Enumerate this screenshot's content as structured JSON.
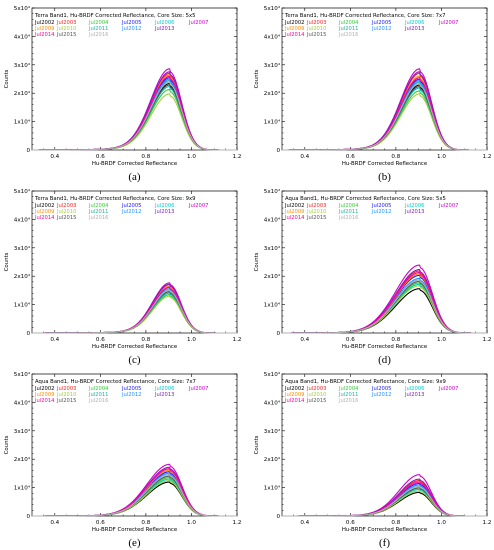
{
  "chart_data": [
    {
      "type": "line",
      "title": "Terra Band1, Hu-BRDF Corrected Reflectance, Core Size: 5x5",
      "xlabel": "Hu-BRDF Corrected Reflectance",
      "ylabel": "Counts",
      "xlim": [
        0.3,
        1.2
      ],
      "ylim": [
        0,
        50000
      ],
      "panel_label": "(a)",
      "peak_x": 0.905,
      "width_left": 0.083,
      "width_right": 0.052,
      "series": [
        {
          "name": "Jul2002",
          "color": "#000000",
          "peak": 22500
        },
        {
          "name": "Jul2003",
          "color": "#ff2020",
          "peak": 26000
        },
        {
          "name": "Jul2004",
          "color": "#33cc33",
          "peak": 20500
        },
        {
          "name": "Jul2005",
          "color": "#1a1aff",
          "peak": 24500
        },
        {
          "name": "Jul2006",
          "color": "#00cccc",
          "peak": 21500
        },
        {
          "name": "Jul2007",
          "color": "#cc00cc",
          "peak": 27500
        },
        {
          "name": "Jul2009",
          "color": "#ff8c00",
          "peak": 25500
        },
        {
          "name": "Jul2010",
          "color": "#a0d040",
          "peak": 19000
        },
        {
          "name": "Jul2011",
          "color": "#20b0a0",
          "peak": 23500
        },
        {
          "name": "Jul2012",
          "color": "#2090ff",
          "peak": 24000
        },
        {
          "name": "Jul2013",
          "color": "#8020c0",
          "peak": 26500
        },
        {
          "name": "Jul2014",
          "color": "#ff00a0",
          "peak": 25000
        },
        {
          "name": "Jul2015",
          "color": "#555555",
          "peak": 22000
        },
        {
          "name": "Jul2016",
          "color": "#b0b0b0",
          "peak": 23000
        }
      ]
    },
    {
      "type": "line",
      "title": "Terra Band1, Hu-BRDF Corrected Reflectance, Core Size: 7x7",
      "xlabel": "Hu-BRDF Corrected Reflectance",
      "ylabel": "Counts",
      "xlim": [
        0.3,
        1.2
      ],
      "ylim": [
        0,
        50000
      ],
      "panel_label": "(b)",
      "peak_x": 0.905,
      "width_left": 0.083,
      "width_right": 0.052,
      "series": [
        {
          "name": "Jul2002",
          "color": "#000000",
          "peak": 22000
        },
        {
          "name": "Jul2003",
          "color": "#ff2020",
          "peak": 26000
        },
        {
          "name": "Jul2004",
          "color": "#33cc33",
          "peak": 20000
        },
        {
          "name": "Jul2005",
          "color": "#1a1aff",
          "peak": 24000
        },
        {
          "name": "Jul2006",
          "color": "#00cccc",
          "peak": 21000
        },
        {
          "name": "Jul2007",
          "color": "#cc00cc",
          "peak": 27500
        },
        {
          "name": "Jul2009",
          "color": "#ff8c00",
          "peak": 25000
        },
        {
          "name": "Jul2010",
          "color": "#a0d040",
          "peak": 19000
        },
        {
          "name": "Jul2011",
          "color": "#20b0a0",
          "peak": 23000
        },
        {
          "name": "Jul2012",
          "color": "#2090ff",
          "peak": 23500
        },
        {
          "name": "Jul2013",
          "color": "#8020c0",
          "peak": 26500
        },
        {
          "name": "Jul2014",
          "color": "#ff00a0",
          "peak": 24500
        },
        {
          "name": "Jul2015",
          "color": "#555555",
          "peak": 21500
        },
        {
          "name": "Jul2016",
          "color": "#b0b0b0",
          "peak": 22500
        }
      ]
    },
    {
      "type": "line",
      "title": "Terra Band1, Hu-BRDF Corrected Reflectance, Core Size: 9x9",
      "xlabel": "Hu-BRDF Corrected Reflectance",
      "ylabel": "Counts",
      "xlim": [
        0.3,
        1.2
      ],
      "ylim": [
        0,
        50000
      ],
      "panel_label": "(c)",
      "peak_x": 0.905,
      "width_left": 0.075,
      "width_right": 0.05,
      "series": [
        {
          "name": "Jul2002",
          "color": "#000000",
          "peak": 14000
        },
        {
          "name": "Jul2003",
          "color": "#ff2020",
          "peak": 16500
        },
        {
          "name": "Jul2004",
          "color": "#33cc33",
          "peak": 13000
        },
        {
          "name": "Jul2005",
          "color": "#1a1aff",
          "peak": 15500
        },
        {
          "name": "Jul2006",
          "color": "#00cccc",
          "peak": 13500
        },
        {
          "name": "Jul2007",
          "color": "#cc00cc",
          "peak": 17000
        },
        {
          "name": "Jul2009",
          "color": "#ff8c00",
          "peak": 16000
        },
        {
          "name": "Jul2010",
          "color": "#a0d040",
          "peak": 12500
        },
        {
          "name": "Jul2011",
          "color": "#20b0a0",
          "peak": 14500
        },
        {
          "name": "Jul2012",
          "color": "#2090ff",
          "peak": 15000
        },
        {
          "name": "Jul2013",
          "color": "#8020c0",
          "peak": 16500
        },
        {
          "name": "Jul2014",
          "color": "#ff00a0",
          "peak": 15500
        },
        {
          "name": "Jul2015",
          "color": "#555555",
          "peak": 14000
        },
        {
          "name": "Jul2016",
          "color": "#b0b0b0",
          "peak": 14500
        }
      ]
    },
    {
      "type": "line",
      "title": "Aqua Band1, Hu-BRDF Corrected Reflectance, Core Size: 5x5",
      "xlabel": "Hu-BRDF Corrected Reflectance",
      "ylabel": "Counts",
      "xlim": [
        0.3,
        1.2
      ],
      "ylim": [
        0,
        50000
      ],
      "panel_label": "(d)",
      "peak_x": 0.905,
      "width_left": 0.105,
      "width_right": 0.055,
      "series": [
        {
          "name": "Jul2002",
          "color": "#000000",
          "peak": 15000
        },
        {
          "name": "Jul2003",
          "color": "#ff2020",
          "peak": 21000
        },
        {
          "name": "Jul2004",
          "color": "#33cc33",
          "peak": 17000
        },
        {
          "name": "Jul2005",
          "color": "#1a1aff",
          "peak": 19500
        },
        {
          "name": "Jul2006",
          "color": "#00cccc",
          "peak": 16500
        },
        {
          "name": "Jul2007",
          "color": "#cc00cc",
          "peak": 23000
        },
        {
          "name": "Jul2009",
          "color": "#ff8c00",
          "peak": 20000
        },
        {
          "name": "Jul2010",
          "color": "#a0d040",
          "peak": 16000
        },
        {
          "name": "Jul2011",
          "color": "#20b0a0",
          "peak": 18000
        },
        {
          "name": "Jul2012",
          "color": "#2090ff",
          "peak": 18500
        },
        {
          "name": "Jul2013",
          "color": "#8020c0",
          "peak": 21500
        },
        {
          "name": "Jul2014",
          "color": "#ff00a0",
          "peak": 20500
        },
        {
          "name": "Jul2015",
          "color": "#555555",
          "peak": 17500
        },
        {
          "name": "Jul2016",
          "color": "#b0b0b0",
          "peak": 18000
        }
      ]
    },
    {
      "type": "line",
      "title": "Aqua Band1, Hu-BRDF Corrected Reflectance, Core Size: 7x7",
      "xlabel": "Hu-BRDF Corrected Reflectance",
      "ylabel": "Counts",
      "xlim": [
        0.3,
        1.2
      ],
      "ylim": [
        0,
        50000
      ],
      "panel_label": "(e)",
      "peak_x": 0.905,
      "width_left": 0.1,
      "width_right": 0.053,
      "series": [
        {
          "name": "Jul2002",
          "color": "#000000",
          "peak": 11500
        },
        {
          "name": "Jul2003",
          "color": "#ff2020",
          "peak": 16000
        },
        {
          "name": "Jul2004",
          "color": "#33cc33",
          "peak": 13000
        },
        {
          "name": "Jul2005",
          "color": "#1a1aff",
          "peak": 15000
        },
        {
          "name": "Jul2006",
          "color": "#00cccc",
          "peak": 12500
        },
        {
          "name": "Jul2007",
          "color": "#cc00cc",
          "peak": 17500
        },
        {
          "name": "Jul2009",
          "color": "#ff8c00",
          "peak": 15500
        },
        {
          "name": "Jul2010",
          "color": "#a0d040",
          "peak": 12000
        },
        {
          "name": "Jul2011",
          "color": "#20b0a0",
          "peak": 14000
        },
        {
          "name": "Jul2012",
          "color": "#2090ff",
          "peak": 14500
        },
        {
          "name": "Jul2013",
          "color": "#8020c0",
          "peak": 16500
        },
        {
          "name": "Jul2014",
          "color": "#ff00a0",
          "peak": 16000
        },
        {
          "name": "Jul2015",
          "color": "#555555",
          "peak": 13500
        },
        {
          "name": "Jul2016",
          "color": "#b0b0b0",
          "peak": 14000
        }
      ]
    },
    {
      "type": "line",
      "title": "Aqua Band1, Hu-BRDF Corrected Reflectance, Core Size: 9x9",
      "xlabel": "Hu-BRDF Corrected Reflectance",
      "ylabel": "Counts",
      "xlim": [
        0.3,
        1.2
      ],
      "ylim": [
        0,
        50000
      ],
      "panel_label": "(f)",
      "peak_x": 0.905,
      "width_left": 0.09,
      "width_right": 0.05,
      "series": [
        {
          "name": "Jul2002",
          "color": "#000000",
          "peak": 8000
        },
        {
          "name": "Jul2003",
          "color": "#ff2020",
          "peak": 12000
        },
        {
          "name": "Jul2004",
          "color": "#33cc33",
          "peak": 9500
        },
        {
          "name": "Jul2005",
          "color": "#1a1aff",
          "peak": 11000
        },
        {
          "name": "Jul2006",
          "color": "#00cccc",
          "peak": 9000
        },
        {
          "name": "Jul2007",
          "color": "#cc00cc",
          "peak": 14000
        },
        {
          "name": "Jul2009",
          "color": "#ff8c00",
          "peak": 11500
        },
        {
          "name": "Jul2010",
          "color": "#a0d040",
          "peak": 8500
        },
        {
          "name": "Jul2011",
          "color": "#20b0a0",
          "peak": 10000
        },
        {
          "name": "Jul2012",
          "color": "#2090ff",
          "peak": 10500
        },
        {
          "name": "Jul2013",
          "color": "#8020c0",
          "peak": 12500
        },
        {
          "name": "Jul2014",
          "color": "#ff00a0",
          "peak": 11500
        },
        {
          "name": "Jul2015",
          "color": "#555555",
          "peak": 9500
        },
        {
          "name": "Jul2016",
          "color": "#b0b0b0",
          "peak": 10000
        }
      ]
    }
  ],
  "axes": {
    "x_ticks": [
      "0.4",
      "0.6",
      "0.8",
      "1.0",
      "1.2"
    ],
    "x_tick_values": [
      0.4,
      0.6,
      0.8,
      1.0,
      1.2
    ],
    "y_ticks": [
      "0",
      "1x10⁴",
      "2x10⁴",
      "3x10⁴",
      "4x10⁴",
      "5x10⁴"
    ],
    "y_tick_values": [
      0,
      10000,
      20000,
      30000,
      40000,
      50000
    ]
  },
  "legend_order": [
    [
      "Jul2002",
      "Jul2003",
      "Jul2004",
      "Jul2005",
      "Jul2006",
      "Jul2007"
    ],
    [
      "Jul2009",
      "Jul2010",
      "Jul2011",
      "Jul2012",
      "Jul2013"
    ],
    [
      "Jul2014",
      "Jul2015",
      "Jul2016"
    ]
  ]
}
